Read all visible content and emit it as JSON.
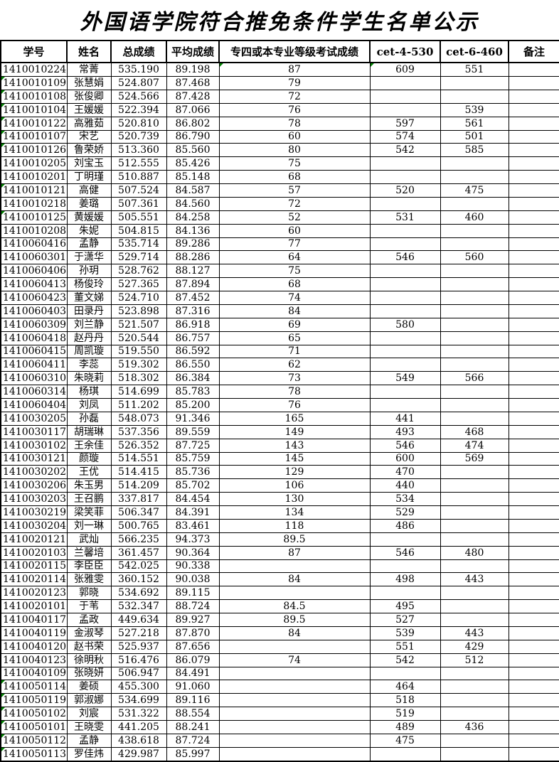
{
  "title": "外国语学院符合推免条件学生名单公示",
  "indicator": {
    "name": "green-corner-triangle",
    "color": "#008000"
  },
  "table": {
    "columns": [
      "学号",
      "姓名",
      "总成绩",
      "平均成绩",
      "专四或本专业等级考试成绩",
      "cet-4-530",
      "cet-6-460",
      "备注"
    ],
    "col_names": [
      "student-id",
      "name",
      "total-score",
      "average-score",
      "tem4-score",
      "cet4-score",
      "cet6-score",
      "remarks"
    ],
    "rows": [
      {
        "cells": [
          "1410010224",
          "常菁",
          "535.190",
          "89.198",
          "87",
          "609",
          "551",
          ""
        ],
        "triangles": [
          4,
          5
        ]
      },
      {
        "cells": [
          "1410010109",
          "张慧娟",
          "524.807",
          "87.468",
          "79",
          "",
          "",
          ""
        ],
        "triangles": [
          0
        ]
      },
      {
        "cells": [
          "1410010108",
          "张俊卿",
          "524.566",
          "87.428",
          "72",
          "",
          "",
          ""
        ],
        "triangles": [
          0
        ]
      },
      {
        "cells": [
          "1410010104",
          "王媛媛",
          "522.394",
          "87.066",
          "76",
          "",
          "539",
          ""
        ],
        "triangles": [
          0
        ]
      },
      {
        "cells": [
          "1410010122",
          "高雅茹",
          "520.810",
          "86.802",
          "78",
          "597",
          "561",
          ""
        ],
        "triangles": [
          0
        ]
      },
      {
        "cells": [
          "1410010107",
          "宋艺",
          "520.739",
          "86.790",
          "60",
          "574",
          "501",
          ""
        ],
        "triangles": [
          0
        ]
      },
      {
        "cells": [
          "1410010126",
          "鲁荣娇",
          "513.360",
          "85.560",
          "80",
          "542",
          "585",
          ""
        ],
        "triangles": [
          0
        ]
      },
      {
        "cells": [
          "1410010205",
          "刘宝玉",
          "512.555",
          "85.426",
          "75",
          "",
          "",
          ""
        ],
        "triangles": []
      },
      {
        "cells": [
          "1410010201",
          "丁明瑾",
          "510.887",
          "85.148",
          "68",
          "",
          "",
          ""
        ],
        "triangles": []
      },
      {
        "cells": [
          "1410010121",
          "高健",
          "507.524",
          "84.587",
          "57",
          "520",
          "475",
          ""
        ],
        "triangles": [
          0
        ]
      },
      {
        "cells": [
          "1410010218",
          "姜璐",
          "507.361",
          "84.560",
          "72",
          "",
          "",
          ""
        ],
        "triangles": []
      },
      {
        "cells": [
          "1410010125",
          "黄媛媛",
          "505.551",
          "84.258",
          "52",
          "531",
          "460",
          ""
        ],
        "triangles": [
          0
        ]
      },
      {
        "cells": [
          "1410010208",
          "朱妮",
          "504.815",
          "84.136",
          "60",
          "",
          "",
          ""
        ],
        "triangles": []
      },
      {
        "cells": [
          "1410060416",
          "孟静",
          "535.714",
          "89.286",
          "77",
          "",
          "",
          ""
        ],
        "triangles": []
      },
      {
        "cells": [
          "1410060301",
          "于潇华",
          "529.714",
          "88.286",
          "64",
          "546",
          "560",
          ""
        ],
        "triangles": []
      },
      {
        "cells": [
          "1410060406",
          "孙玥",
          "528.762",
          "88.127",
          "75",
          "",
          "",
          ""
        ],
        "triangles": []
      },
      {
        "cells": [
          "1410060413",
          "杨俊玲",
          "527.365",
          "87.894",
          "68",
          "",
          "",
          ""
        ],
        "triangles": []
      },
      {
        "cells": [
          "1410060423",
          "董文娣",
          "524.710",
          "87.452",
          "74",
          "",
          "",
          ""
        ],
        "triangles": []
      },
      {
        "cells": [
          "1410060403",
          "田录丹",
          "523.898",
          "87.316",
          "84",
          "",
          "",
          ""
        ],
        "triangles": []
      },
      {
        "cells": [
          "1410060309",
          "刘兰静",
          "521.507",
          "86.918",
          "69",
          "580",
          "",
          ""
        ],
        "triangles": []
      },
      {
        "cells": [
          "1410060418",
          "赵丹丹",
          "520.544",
          "86.757",
          "65",
          "",
          "",
          ""
        ],
        "triangles": []
      },
      {
        "cells": [
          "1410060415",
          "周凯璇",
          "519.550",
          "86.592",
          "71",
          "",
          "",
          ""
        ],
        "triangles": []
      },
      {
        "cells": [
          "1410060411",
          "李蕊",
          "519.302",
          "86.550",
          "62",
          "",
          "",
          ""
        ],
        "triangles": []
      },
      {
        "cells": [
          "1410060310",
          "朱晓莉",
          "518.302",
          "86.384",
          "73",
          "549",
          "566",
          ""
        ],
        "triangles": []
      },
      {
        "cells": [
          "1410060314",
          "杨琪",
          "514.699",
          "85.783",
          "78",
          "",
          "",
          ""
        ],
        "triangles": []
      },
      {
        "cells": [
          "1410060404",
          "刘凤",
          "511.202",
          "85.200",
          "76",
          "",
          "",
          ""
        ],
        "triangles": []
      },
      {
        "cells": [
          "1410030205",
          "孙磊",
          "548.073",
          "91.346",
          "165",
          "441",
          "",
          ""
        ],
        "triangles": []
      },
      {
        "cells": [
          "1410030117",
          "胡瑞琳",
          "537.356",
          "89.559",
          "149",
          "493",
          "468",
          ""
        ],
        "triangles": []
      },
      {
        "cells": [
          "1410030102",
          "王余佳",
          "526.352",
          "87.725",
          "143",
          "546",
          "474",
          ""
        ],
        "triangles": []
      },
      {
        "cells": [
          "1410030121",
          "颜璇",
          "514.551",
          "85.759",
          "145",
          "600",
          "569",
          ""
        ],
        "triangles": []
      },
      {
        "cells": [
          "1410030202",
          "王优",
          "514.415",
          "85.736",
          "129",
          "470",
          "",
          ""
        ],
        "triangles": []
      },
      {
        "cells": [
          "1410030206",
          "朱玉男",
          "514.209",
          "85.702",
          "106",
          "440",
          "",
          ""
        ],
        "triangles": []
      },
      {
        "cells": [
          "1410030203",
          "王召鹏",
          "337.817",
          "84.454",
          "130",
          "534",
          "",
          ""
        ],
        "triangles": []
      },
      {
        "cells": [
          "1410030219",
          "梁笑菲",
          "506.347",
          "84.391",
          "134",
          "529",
          "",
          ""
        ],
        "triangles": []
      },
      {
        "cells": [
          "1410030204",
          "刘一琳",
          "500.765",
          "83.461",
          "118",
          "486",
          "",
          ""
        ],
        "triangles": []
      },
      {
        "cells": [
          "1410020121",
          "武灿",
          "566.235",
          "94.373",
          "89.5",
          "",
          "",
          ""
        ],
        "triangles": []
      },
      {
        "cells": [
          "1410020103",
          "兰馨培",
          "361.457",
          "90.364",
          "87",
          "546",
          "480",
          ""
        ],
        "triangles": []
      },
      {
        "cells": [
          "1410020115",
          "李臣臣",
          "542.025",
          "90.338",
          "",
          "",
          "",
          ""
        ],
        "triangles": []
      },
      {
        "cells": [
          "1410020114",
          "张雅雯",
          "360.152",
          "90.038",
          "84",
          "498",
          "443",
          ""
        ],
        "triangles": []
      },
      {
        "cells": [
          "1410020123",
          "郭晓",
          "534.692",
          "89.115",
          "",
          "",
          "",
          ""
        ],
        "triangles": []
      },
      {
        "cells": [
          "1410020101",
          "于苇",
          "532.347",
          "88.724",
          "84.5",
          "495",
          "",
          ""
        ],
        "triangles": []
      },
      {
        "cells": [
          "1410040117",
          "孟政",
          "449.634",
          "89.927",
          "89.5",
          "527",
          "",
          ""
        ],
        "triangles": []
      },
      {
        "cells": [
          "1410040119",
          "金淑琴",
          "527.218",
          "87.870",
          "84",
          "539",
          "443",
          ""
        ],
        "triangles": []
      },
      {
        "cells": [
          "1410040120",
          "赵书荣",
          "525.937",
          "87.656",
          "",
          "551",
          "429",
          ""
        ],
        "triangles": []
      },
      {
        "cells": [
          "1410040123",
          "徐明秋",
          "516.476",
          "86.079",
          "74",
          "542",
          "512",
          ""
        ],
        "triangles": []
      },
      {
        "cells": [
          "1410040109",
          "张晓妍",
          "506.947",
          "84.491",
          "",
          "",
          "",
          ""
        ],
        "triangles": []
      },
      {
        "cells": [
          "1410050114",
          "姜硕",
          "455.300",
          "91.060",
          "",
          "464",
          "",
          ""
        ],
        "triangles": [
          0
        ]
      },
      {
        "cells": [
          "1410050119",
          "郭淑娜",
          "534.699",
          "89.116",
          "",
          "518",
          "",
          ""
        ],
        "triangles": [
          0
        ]
      },
      {
        "cells": [
          "1410050102",
          "刘宸",
          "531.322",
          "88.554",
          "",
          "519",
          "",
          ""
        ],
        "triangles": [
          0
        ]
      },
      {
        "cells": [
          "1410050101",
          "王晓雯",
          "441.205",
          "88.241",
          "",
          "489",
          "436",
          ""
        ],
        "triangles": [
          0
        ]
      },
      {
        "cells": [
          "1410050112",
          "孟静",
          "438.618",
          "87.724",
          "",
          "475",
          "",
          ""
        ],
        "triangles": [
          0
        ]
      },
      {
        "cells": [
          "1410050113",
          "罗佳炜",
          "429.987",
          "85.997",
          "",
          "",
          "",
          ""
        ],
        "triangles": [
          0
        ]
      }
    ]
  }
}
